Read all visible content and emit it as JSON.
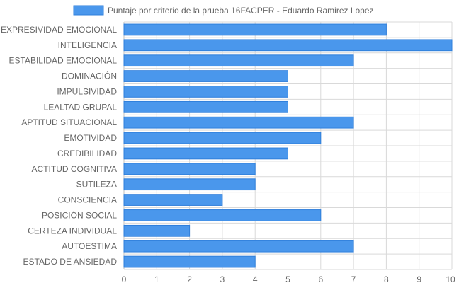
{
  "chart_data": {
    "type": "bar",
    "orientation": "horizontal",
    "categories": [
      "EXPRESIVIDAD EMOCIONAL",
      "INTELIGENCIA",
      "ESTABILIDAD EMOCIONAL",
      "DOMINACIÓN",
      "IMPULSIVIDAD",
      "LEALTAD GRUPAL",
      "APTITUD SITUACIONAL",
      "EMOTIVIDAD",
      "CREDIBILIDAD",
      "ACTITUD COGNITIVA",
      "SUTILEZA",
      "CONSCIENCIA",
      "POSICIÓN SOCIAL",
      "CERTEZA INDIVIDUAL",
      "AUTOESTIMA",
      "ESTADO DE ANSIEDAD"
    ],
    "series": [
      {
        "name": "Puntaje por criterio de la prueba 16FACPER - Eduardo Ramirez Lopez",
        "values": [
          8,
          10,
          7,
          5,
          5,
          5,
          7,
          6,
          5,
          4,
          4,
          3,
          6,
          2,
          7,
          4
        ]
      }
    ],
    "xlim": [
      0,
      10
    ],
    "xticks": [
      "0",
      "1",
      "2",
      "3",
      "4",
      "5",
      "6",
      "7",
      "8",
      "9",
      "10"
    ],
    "grid": true,
    "legend": "top",
    "colors": {
      "bar_fill": "#4a97ec",
      "bar_stroke": "#2f7fdb",
      "grid": "#d9d9d9"
    }
  }
}
